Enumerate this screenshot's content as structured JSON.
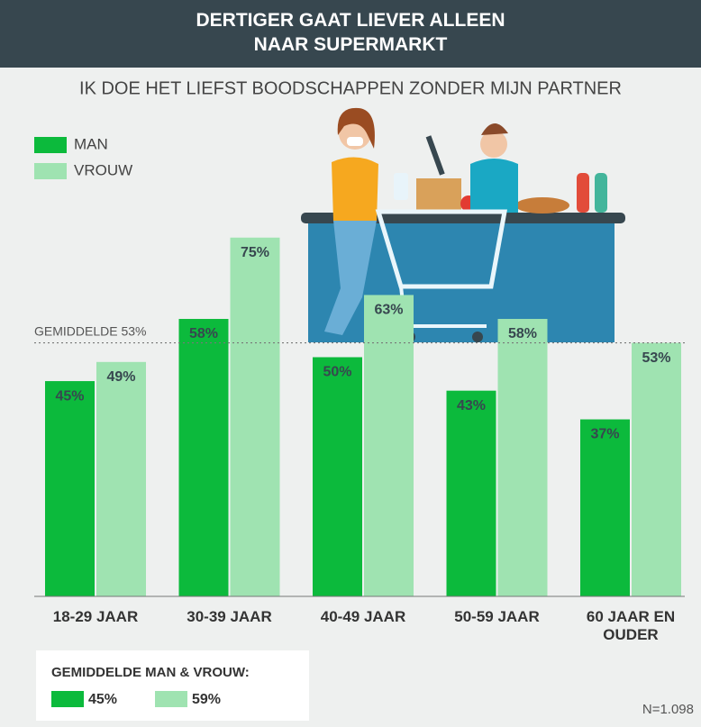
{
  "chart_data": {
    "type": "bar",
    "title": "DERTIGER GAAT LIEVER ALLEEN NAAR SUPERMARKT",
    "subtitle": "IK DOE HET LIEFST BOODSCHAPPEN ZONDER MIJN PARTNER",
    "categories": [
      "18-29 JAAR",
      "30-39 JAAR",
      "40-49 JAAR",
      "50-59 JAAR",
      "60 JAAR EN OUDER"
    ],
    "series": [
      {
        "name": "MAN",
        "color": "#0cba3c",
        "values": [
          45,
          58,
          50,
          43,
          37
        ],
        "value_labels": [
          "45%",
          "58%",
          "50%",
          "43%",
          "37%"
        ]
      },
      {
        "name": "VROUW",
        "color": "#9fe3b1",
        "values": [
          49,
          75,
          63,
          58,
          53
        ],
        "value_labels": [
          "49%",
          "75%",
          "63%",
          "58%",
          "53%"
        ]
      }
    ],
    "ylim": [
      0,
      100
    ],
    "average_line": {
      "value": 53,
      "label": "GEMIDDELDE 53%"
    },
    "overall": {
      "title": "GEMIDDELDE MAN & VROUW:",
      "values": [
        45,
        59
      ],
      "value_labels": [
        "45%",
        "59%"
      ]
    },
    "note": "N=1.098"
  }
}
